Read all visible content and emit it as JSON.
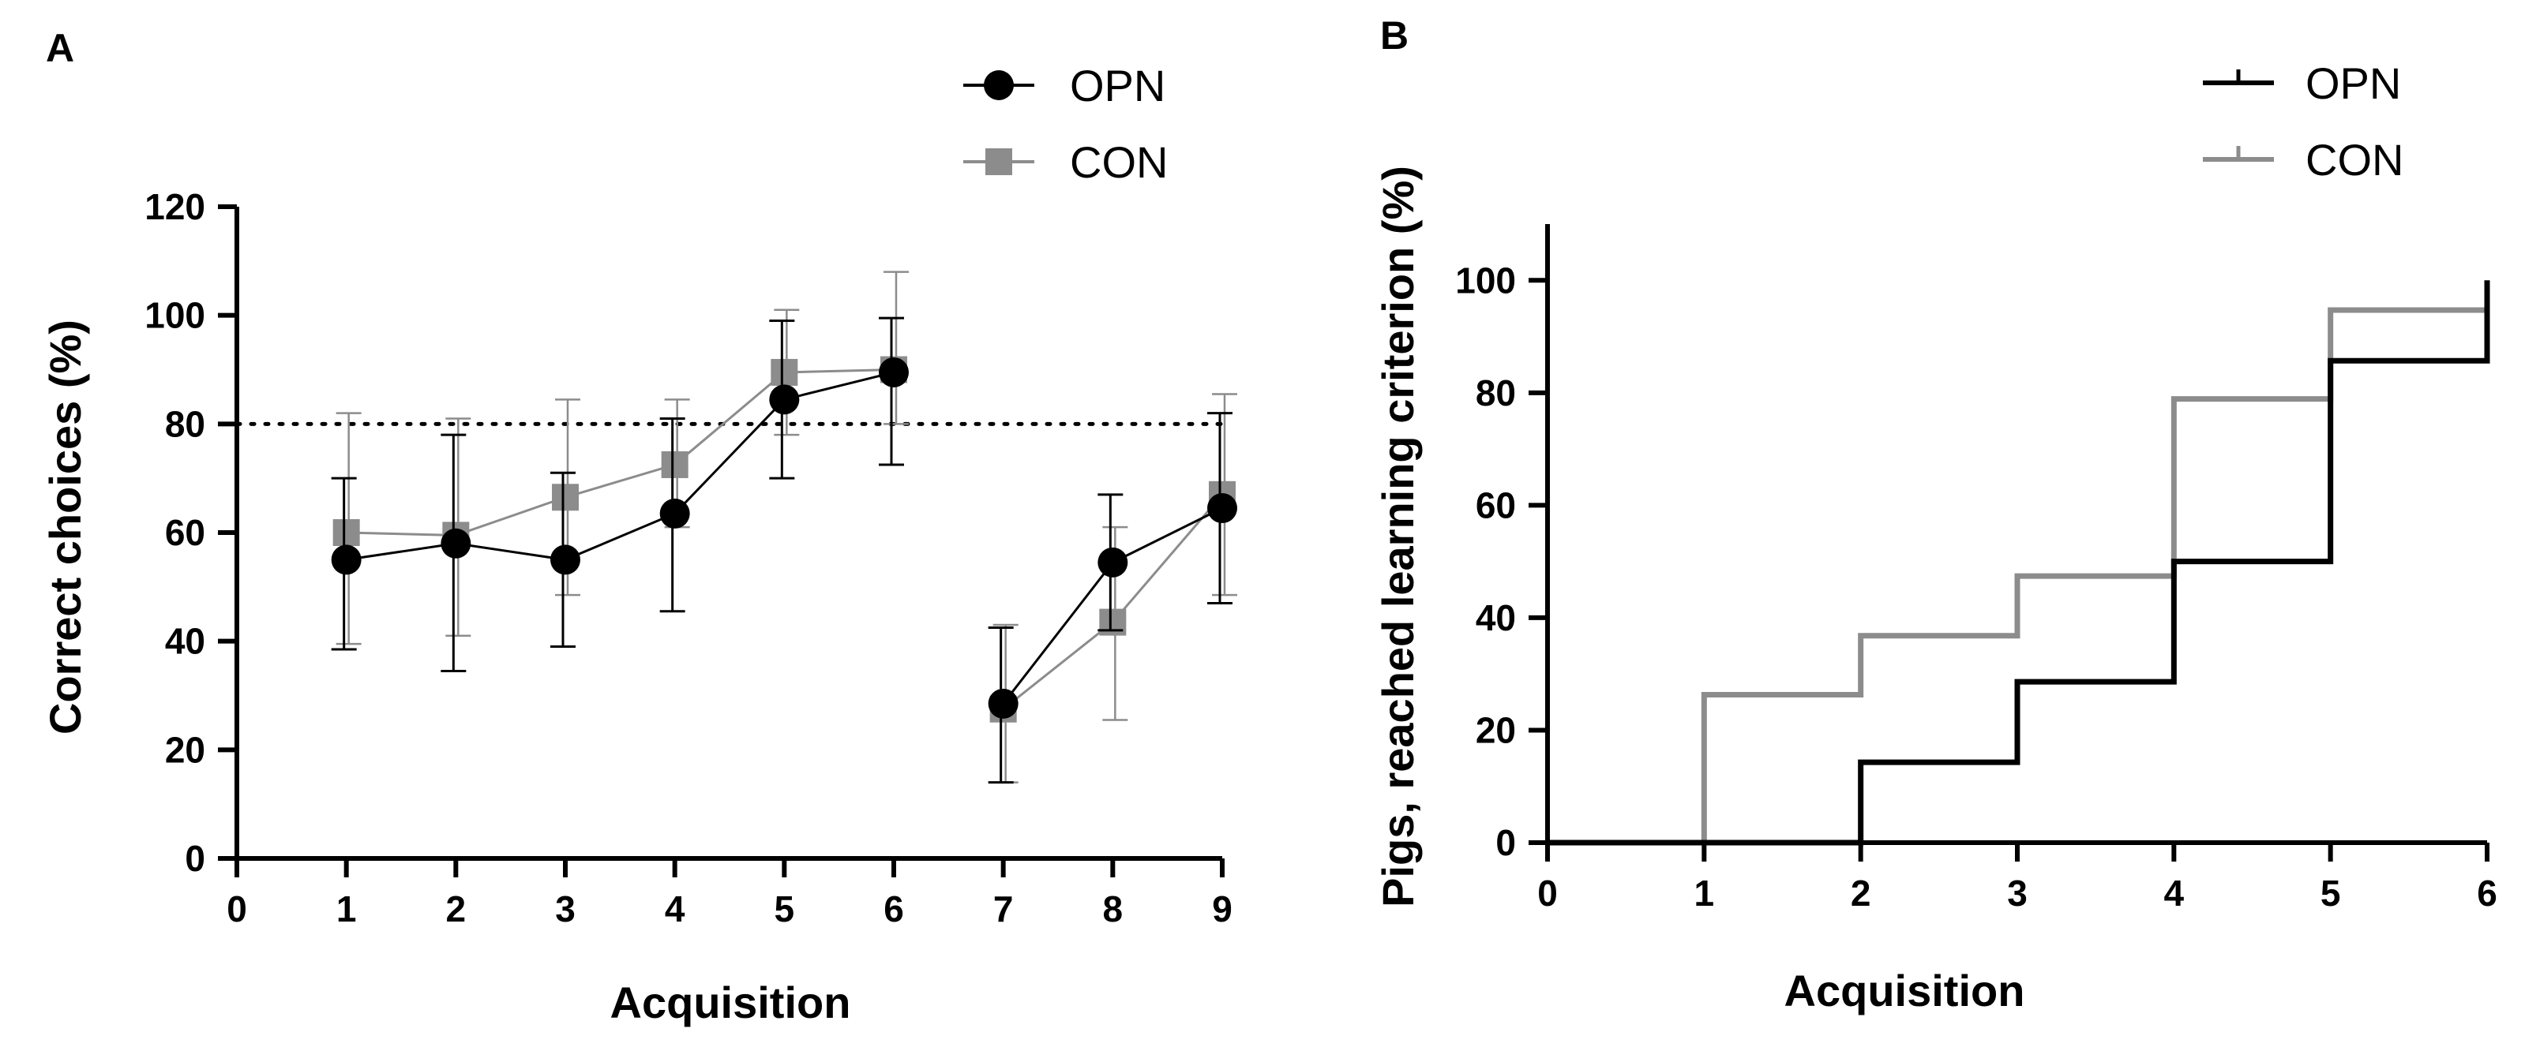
{
  "colors": {
    "opn": "#000000",
    "con": "#8c8c8c",
    "axis": "#000000"
  },
  "chart_data": [
    {
      "panel": "A",
      "type": "line",
      "xlabel": "Acquisition",
      "ylabel": "Correct choices (%)",
      "xlim": [
        0,
        9
      ],
      "ylim": [
        0,
        120
      ],
      "xticks": [
        "0",
        "1",
        "2",
        "3",
        "4",
        "5",
        "6",
        "7",
        "8",
        "9"
      ],
      "yticks": [
        "0",
        "20",
        "40",
        "60",
        "80",
        "100",
        "120"
      ],
      "reference_line": {
        "y": 80,
        "style": "dotted"
      },
      "legend_position": "top-right",
      "segments": [
        [
          1,
          2,
          3,
          4,
          5,
          6
        ],
        [
          7,
          8,
          9
        ]
      ],
      "series": [
        {
          "name": "OPN",
          "marker": "circle",
          "color_key": "opn",
          "x": [
            1,
            2,
            3,
            4,
            5,
            6,
            7,
            8,
            9
          ],
          "y": [
            55,
            58,
            55,
            63.5,
            84.5,
            89.5,
            28.5,
            54.5,
            64.5
          ],
          "err_low": [
            38.5,
            34.5,
            39,
            45.5,
            70,
            72.5,
            14,
            42,
            47
          ],
          "err_high": [
            70,
            78,
            71,
            81,
            99,
            99.5,
            42.5,
            67,
            82
          ]
        },
        {
          "name": "CON",
          "marker": "square",
          "color_key": "con",
          "x": [
            1,
            2,
            3,
            4,
            5,
            6,
            7,
            8,
            9
          ],
          "y": [
            60,
            59.5,
            66.5,
            72.5,
            89.5,
            90,
            27.5,
            43.5,
            67
          ],
          "err_low": [
            39.5,
            41,
            48.5,
            61,
            78,
            80,
            14,
            25.5,
            48.5
          ],
          "err_high": [
            82,
            81,
            84.5,
            84.5,
            101,
            108,
            43,
            61,
            85.5
          ]
        }
      ]
    },
    {
      "panel": "B",
      "type": "step",
      "xlabel": "Acquisition",
      "ylabel": "Pigs, reached learning criterion (%)",
      "xlim": [
        0,
        6
      ],
      "ylim": [
        0,
        110
      ],
      "xticks": [
        "0",
        "1",
        "2",
        "3",
        "4",
        "5",
        "6"
      ],
      "yticks": [
        "0",
        "20",
        "40",
        "60",
        "80",
        "100"
      ],
      "legend_position": "top-right",
      "series": [
        {
          "name": "OPN",
          "color_key": "opn",
          "x": [
            0,
            2,
            3,
            4,
            5,
            6
          ],
          "y": [
            0,
            14.3,
            28.6,
            50,
            85.7,
            100
          ]
        },
        {
          "name": "CON",
          "color_key": "con",
          "x": [
            0,
            1,
            2,
            3,
            4,
            5
          ],
          "y": [
            0,
            26.3,
            36.8,
            47.4,
            78.9,
            94.7
          ]
        }
      ],
      "step_end_x": 6
    }
  ]
}
